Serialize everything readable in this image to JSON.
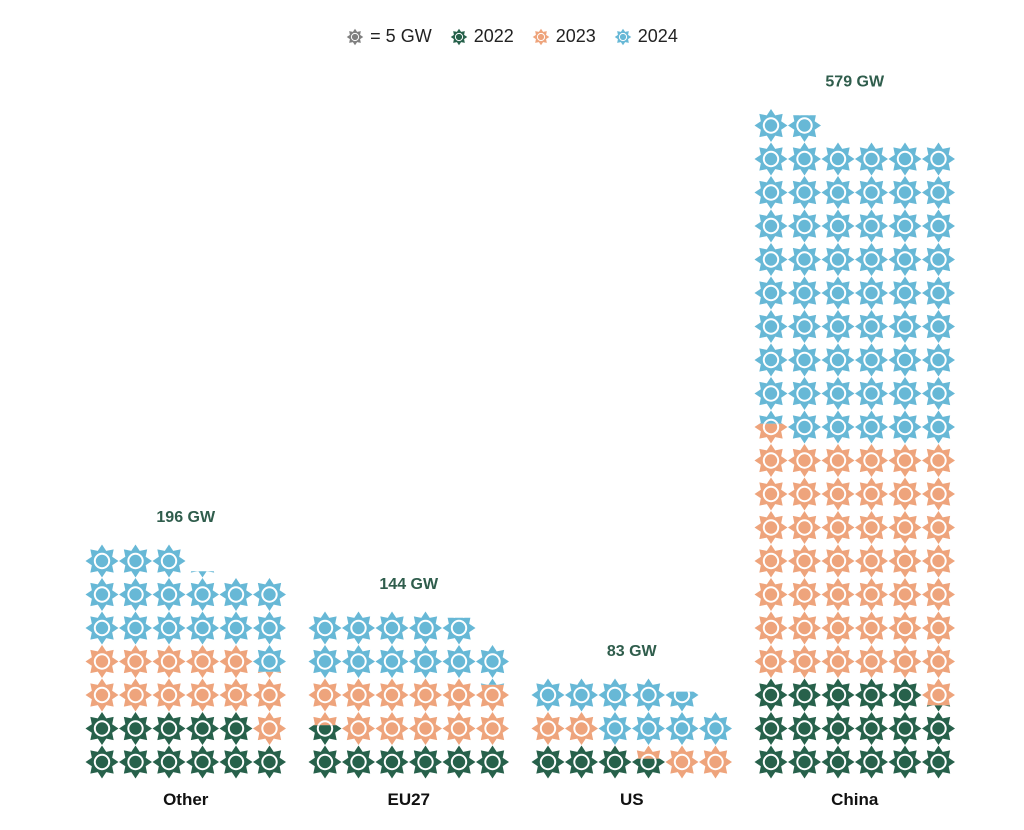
{
  "chart_data": {
    "type": "waffle",
    "title": "",
    "unit_label": "= 5 GW",
    "unit_value": 5,
    "icons_per_row": 6,
    "legend": [
      {
        "key": "unit",
        "label": "= 5 GW",
        "color": "#7f7f7f"
      },
      {
        "key": "2022",
        "label": "2022",
        "color": "#27614b"
      },
      {
        "key": "2023",
        "label": "2023",
        "color": "#eea47c"
      },
      {
        "key": "2024",
        "label": "2024",
        "color": "#67b8d6"
      }
    ],
    "series": [
      {
        "name": "2022",
        "color": "#27614b"
      },
      {
        "name": "2023",
        "color": "#eea47c"
      },
      {
        "name": "2024",
        "color": "#67b8d6"
      }
    ],
    "categories": [
      "Other",
      "EU27",
      "US",
      "China"
    ],
    "values": {
      "Other": {
        "2022": 55,
        "2023": 61,
        "2024": 80,
        "total_label": "196 GW"
      },
      "EU27": {
        "2022": 33,
        "2023": 56,
        "2024": 55,
        "total_label": "144 GW"
      },
      "US": {
        "2022": 18,
        "2023": 22,
        "2024": 43,
        "total_label": "83 GW"
      },
      "China": {
        "2022": 86,
        "2023": 217,
        "2024": 276,
        "total_label": "579 GW"
      }
    }
  }
}
